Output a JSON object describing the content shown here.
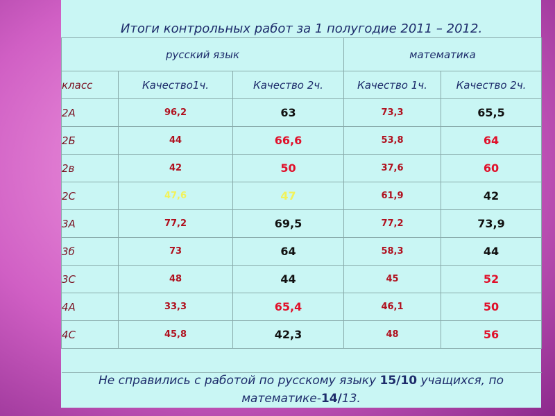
{
  "table": {
    "title": "Итоги контрольных работ за 1 полугодие 2011 – 2012.",
    "groups": [
      "русский язык",
      "математика"
    ],
    "header": [
      "класс",
      "Качество1ч.",
      "Качество 2ч.",
      "Качество 1ч.",
      "Качество 2ч."
    ],
    "rows": [
      [
        "2А",
        "96,2",
        "63",
        "73,3",
        "65,5"
      ],
      [
        "2Б",
        "44",
        "66,6",
        "53,8",
        "64"
      ],
      [
        "2в",
        "42",
        "50",
        "37,6",
        "60"
      ],
      [
        "2С",
        "47,6",
        "47",
        "61,9",
        "42"
      ],
      [
        "3А",
        "77,2",
        "69,5",
        "77,2",
        "73,9"
      ],
      [
        "3б",
        "73",
        "64",
        "58,3",
        "44"
      ],
      [
        "3С",
        "48",
        "44",
        "45",
        "52"
      ],
      [
        "4А",
        "33,3",
        "65,4",
        "46,1",
        "50"
      ],
      [
        "4С",
        "45,8",
        "42,3",
        "48",
        "56"
      ]
    ],
    "footer": [
      "Не справились с работой по русскому языку ",
      "15/10",
      " учащихся, по математике-",
      "14/",
      "13."
    ]
  }
}
